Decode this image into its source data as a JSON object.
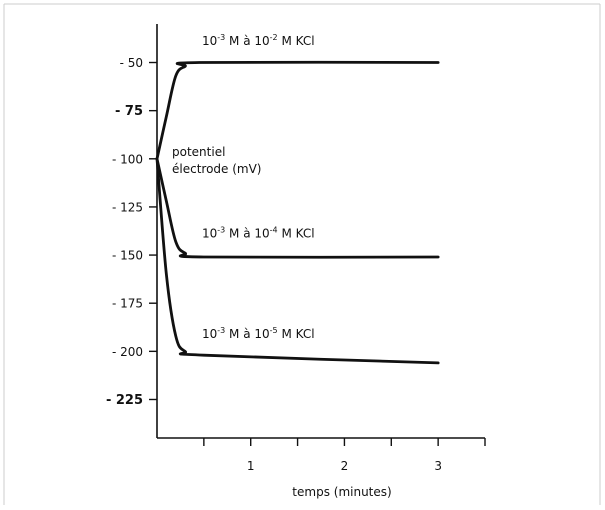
{
  "chart_data": {
    "type": "line",
    "title": "",
    "xlabel": "temps (minutes)",
    "ylabel": "potentiel électrode (mV)",
    "xlim": [
      0,
      3.5
    ],
    "ylim": [
      -245,
      -30
    ],
    "x_ticks": [
      {
        "value": 1,
        "label": "1"
      },
      {
        "value": 2,
        "label": "2"
      },
      {
        "value": 3,
        "label": "3"
      }
    ],
    "x_minor_ticks": [
      0.5,
      1.5,
      2.5,
      3.5
    ],
    "y_ticks": [
      {
        "value": -50,
        "label": "- 50",
        "bold": false
      },
      {
        "value": -75,
        "label": "- 75",
        "bold": true
      },
      {
        "value": -100,
        "label": "- 100",
        "bold": false
      },
      {
        "value": -125,
        "label": "- 125",
        "bold": false
      },
      {
        "value": -150,
        "label": "- 150",
        "bold": false
      },
      {
        "value": -175,
        "label": "- 175",
        "bold": false
      },
      {
        "value": -200,
        "label": "- 200",
        "bold": false
      },
      {
        "value": -225,
        "label": "- 225",
        "bold": true
      }
    ],
    "grid": false,
    "legend": "none",
    "series": [
      {
        "label": {
          "base": "10",
          "exp1": "-3",
          "mid": " M à 10",
          "exp2": "-2",
          "tail": " M KCl"
        },
        "label_at": {
          "x": 0.48,
          "y": -41
        },
        "x": [
          0,
          0.1,
          0.2,
          0.3,
          0.45,
          3
        ],
        "y": [
          -100,
          -78,
          -57,
          -52,
          -50,
          -50
        ]
      },
      {
        "label": {
          "base": "10",
          "exp1": "-3",
          "mid": " M à 10",
          "exp2": "-4",
          "tail": " M KCl"
        },
        "label_at": {
          "x": 0.48,
          "y": -141
        },
        "x": [
          0,
          0.1,
          0.2,
          0.3,
          0.5,
          3
        ],
        "y": [
          -100,
          -122,
          -143,
          -149,
          -151,
          -151
        ]
      },
      {
        "label": {
          "base": "10",
          "exp1": "-3",
          "mid": " M à 10",
          "exp2": "-5",
          "tail": " M KCl"
        },
        "label_at": {
          "x": 0.48,
          "y": -193
        },
        "x": [
          0,
          0.1,
          0.2,
          0.3,
          0.5,
          3
        ],
        "y": [
          -100,
          -160,
          -192,
          -200,
          -202,
          -206
        ]
      }
    ],
    "line_color": "#111111"
  }
}
